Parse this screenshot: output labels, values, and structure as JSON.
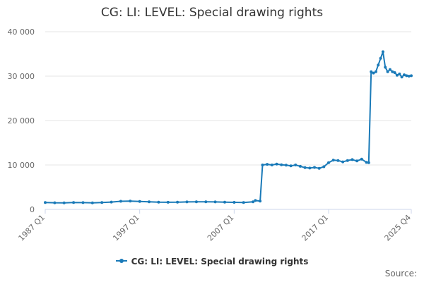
{
  "chart_data": {
    "type": "line",
    "title": "CG: LI: LEVEL: Special drawing rights",
    "x_tick_labels": [
      "1987 Q1",
      "1997 Q1",
      "2007 Q1",
      "2017 Q1",
      "2025 Q4"
    ],
    "x_range": [
      "1987 Q1",
      "2025 Q4"
    ],
    "y_tick_labels": [
      "0",
      "10 000",
      "20 000",
      "30 000",
      "40 000"
    ],
    "y_ticks": [
      0,
      10000,
      20000,
      30000,
      40000
    ],
    "ylim": [
      0,
      40000
    ],
    "grid": true,
    "legend_position": "bottom",
    "color": "#1a7ab8",
    "series": [
      {
        "name": "CG: LI: LEVEL: Special drawing rights",
        "points": [
          [
            "1987 Q1",
            1550
          ],
          [
            "1988 Q1",
            1500
          ],
          [
            "1989 Q1",
            1480
          ],
          [
            "1990 Q1",
            1560
          ],
          [
            "1991 Q1",
            1520
          ],
          [
            "1992 Q1",
            1480
          ],
          [
            "1993 Q1",
            1540
          ],
          [
            "1994 Q1",
            1650
          ],
          [
            "1995 Q1",
            1820
          ],
          [
            "1996 Q1",
            1850
          ],
          [
            "1997 Q1",
            1800
          ],
          [
            "1998 Q1",
            1720
          ],
          [
            "1999 Q1",
            1640
          ],
          [
            "2000 Q1",
            1600
          ],
          [
            "2001 Q1",
            1620
          ],
          [
            "2002 Q1",
            1680
          ],
          [
            "2003 Q1",
            1700
          ],
          [
            "2004 Q1",
            1720
          ],
          [
            "2005 Q1",
            1680
          ],
          [
            "2006 Q1",
            1620
          ],
          [
            "2007 Q1",
            1580
          ],
          [
            "2008 Q1",
            1560
          ],
          [
            "2009 Q1",
            1700
          ],
          [
            "2009 Q2",
            2000
          ],
          [
            "2009 Q4",
            1850
          ],
          [
            "2010 Q1",
            10000
          ],
          [
            "2010 Q3",
            10150
          ],
          [
            "2011 Q1",
            10000
          ],
          [
            "2011 Q3",
            10200
          ],
          [
            "2012 Q1",
            10050
          ],
          [
            "2012 Q3",
            9950
          ],
          [
            "2013 Q1",
            9800
          ],
          [
            "2013 Q3",
            10000
          ],
          [
            "2014 Q1",
            9700
          ],
          [
            "2014 Q3",
            9400
          ],
          [
            "2015 Q1",
            9300
          ],
          [
            "2015 Q3",
            9450
          ],
          [
            "2016 Q1",
            9250
          ],
          [
            "2016 Q3",
            9600
          ],
          [
            "2017 Q1",
            10500
          ],
          [
            "2017 Q3",
            11100
          ],
          [
            "2018 Q1",
            11000
          ],
          [
            "2018 Q3",
            10700
          ],
          [
            "2019 Q1",
            11000
          ],
          [
            "2019 Q3",
            11200
          ],
          [
            "2020 Q1",
            10900
          ],
          [
            "2020 Q3",
            11300
          ],
          [
            "2021 Q1",
            10600
          ],
          [
            "2021 Q2",
            10500
          ],
          [
            "2021 Q3",
            31000
          ],
          [
            "2021 Q4",
            30700
          ],
          [
            "2022 Q1",
            31000
          ],
          [
            "2022 Q2",
            32500
          ],
          [
            "2022 Q3",
            34000
          ],
          [
            "2022 Q4",
            35500
          ],
          [
            "2023 Q1",
            32000
          ],
          [
            "2023 Q2",
            31000
          ],
          [
            "2023 Q3",
            31500
          ],
          [
            "2023 Q4",
            31000
          ],
          [
            "2024 Q1",
            30800
          ],
          [
            "2024 Q2",
            30200
          ],
          [
            "2024 Q3",
            30500
          ],
          [
            "2024 Q4",
            29800
          ],
          [
            "2025 Q1",
            30300
          ],
          [
            "2025 Q2",
            30100
          ],
          [
            "2025 Q3",
            30000
          ],
          [
            "2025 Q4",
            30100
          ]
        ]
      }
    ]
  },
  "legend": {
    "label": "CG: LI: LEVEL: Special drawing rights"
  },
  "source": {
    "label": "Source:"
  }
}
